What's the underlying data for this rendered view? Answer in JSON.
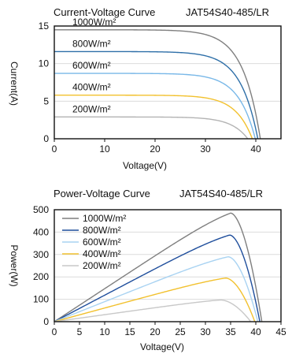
{
  "chart_data": [
    {
      "type": "line",
      "title": "Current-Voltage Curve",
      "model": "JAT54S40-485/LR",
      "xlabel": "Voltage(V)",
      "ylabel": "Current(A)",
      "xlim": [
        0,
        45
      ],
      "ylim": [
        0,
        15
      ],
      "xticks": [
        0,
        10,
        20,
        30,
        40
      ],
      "yticks": [
        0,
        5,
        10,
        15
      ],
      "grid": "horizontal",
      "series": [
        {
          "name": "1000W/m²",
          "color": "#7f7f7f",
          "isc": 14.5,
          "voc": 40.9,
          "vmp": 34.0
        },
        {
          "name": "800W/m²",
          "color": "#2e6fa8",
          "isc": 11.6,
          "voc": 40.4,
          "vmp": 34.0
        },
        {
          "name": "600W/m²",
          "color": "#79b8e8",
          "isc": 8.7,
          "voc": 39.9,
          "vmp": 34.0
        },
        {
          "name": "400W/m²",
          "color": "#f2c12e",
          "isc": 5.8,
          "voc": 39.3,
          "vmp": 33.5
        },
        {
          "name": "200W/m²",
          "color": "#b3b3b3",
          "isc": 2.9,
          "voc": 38.4,
          "vmp": 33.0
        }
      ]
    },
    {
      "type": "line",
      "title": "Power-Voltage Curve",
      "model": "JAT54S40-485/LR",
      "xlabel": "Voltage(V)",
      "ylabel": "Power(W)",
      "xlim": [
        0,
        45
      ],
      "ylim": [
        0,
        500
      ],
      "xticks": [
        0,
        5,
        10,
        15,
        20,
        25,
        30,
        35,
        40,
        45
      ],
      "yticks": [
        0,
        100,
        200,
        300,
        400,
        500
      ],
      "grid": "horizontal",
      "legend": "top-left",
      "series": [
        {
          "name": "1000W/m²",
          "color": "#7f7f7f",
          "pmax": 485,
          "vmp": 35.0,
          "voc": 41.2
        },
        {
          "name": "800W/m²",
          "color": "#1f4e9c",
          "pmax": 387,
          "vmp": 34.8,
          "voc": 40.8
        },
        {
          "name": "600W/m²",
          "color": "#a9d3f2",
          "pmax": 290,
          "vmp": 34.5,
          "voc": 40.4
        },
        {
          "name": "400W/m²",
          "color": "#f2c12e",
          "pmax": 195,
          "vmp": 34.0,
          "voc": 39.8
        },
        {
          "name": "200W/m²",
          "color": "#c8c8c8",
          "pmax": 97,
          "vmp": 33.0,
          "voc": 39.0
        }
      ]
    }
  ]
}
